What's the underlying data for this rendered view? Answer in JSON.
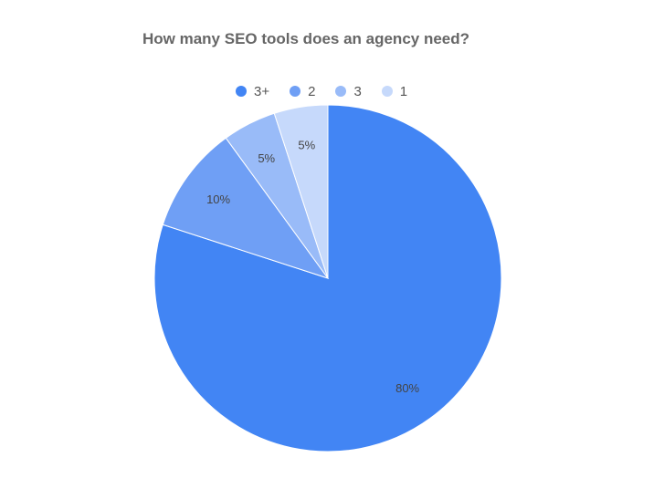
{
  "chart_data": {
    "type": "pie",
    "title": "How many SEO tools does an agency need?",
    "legend_position": "top",
    "slices": [
      {
        "name": "3+",
        "value": 80,
        "label": "80%",
        "color": "#4285f4"
      },
      {
        "name": "2",
        "value": 10,
        "label": "10%",
        "color": "#6f9ff5"
      },
      {
        "name": "3",
        "value": 5,
        "label": "5%",
        "color": "#99bbf8"
      },
      {
        "name": "1",
        "value": 5,
        "label": "5%",
        "color": "#c6d9fb"
      }
    ]
  }
}
